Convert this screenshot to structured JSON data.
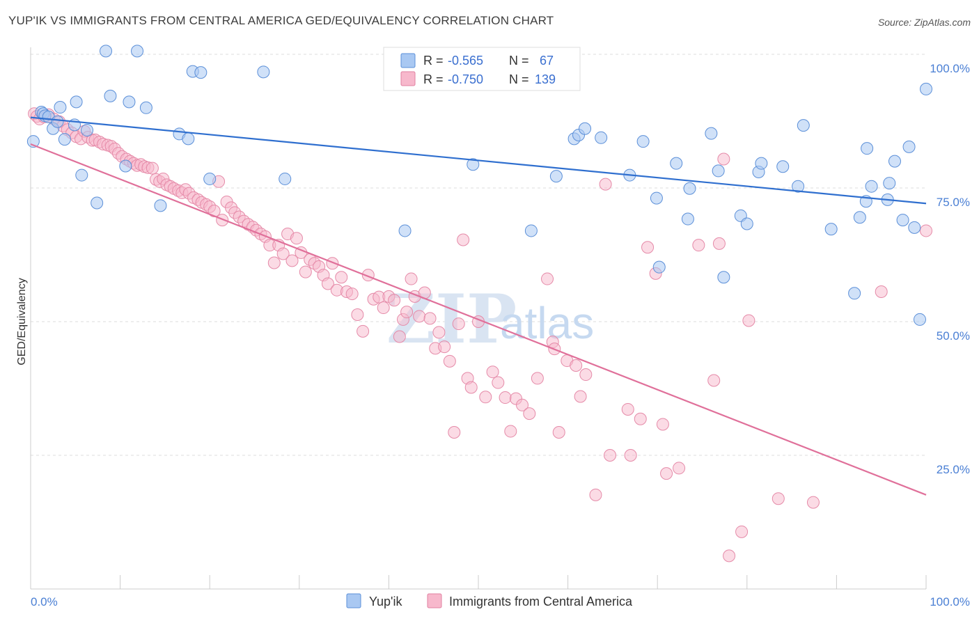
{
  "title": "YUP'IK VS IMMIGRANTS FROM CENTRAL AMERICA GED/EQUIVALENCY CORRELATION CHART",
  "source": "Source: ZipAtlas.com",
  "watermark": {
    "zip": "ZIP",
    "atlas": "atlas"
  },
  "legend_box": {
    "rows": [
      {
        "r_label": "R =",
        "r_value": "-0.565",
        "n_label": "N =",
        "n_value": "67",
        "color": "#a9c8f2",
        "stroke": "#5b8fd8"
      },
      {
        "r_label": "R =",
        "r_value": "-0.750",
        "n_label": "N =",
        "n_value": "139",
        "color": "#f7b8cc",
        "stroke": "#e07fa0"
      }
    ]
  },
  "colors": {
    "blue_fill": "#a9c8f2",
    "blue_stroke": "#5b8fd8",
    "blue_line": "#2f6fcf",
    "pink_fill": "#f7b8cc",
    "pink_stroke": "#e58aa8",
    "pink_line": "#e0709a",
    "tick": "#4a7fd4",
    "grid": "#dddddd"
  },
  "chart_data": {
    "type": "scatter",
    "title": "YUP'IK VS IMMIGRANTS FROM CENTRAL AMERICA GED/EQUIVALENCY CORRELATION CHART",
    "xlabel": "",
    "ylabel": "GED/Equivalency",
    "xlim": [
      0,
      100
    ],
    "ylim": [
      0,
      100
    ],
    "x_tick_labels": [
      "0.0%",
      "100.0%"
    ],
    "y_tick_labels": [
      "25.0%",
      "50.0%",
      "75.0%",
      "100.0%"
    ],
    "y_ticks": [
      25,
      50,
      75,
      100
    ],
    "grid": true,
    "legend_position": "bottom-center",
    "series": [
      {
        "name": "Yup'ik",
        "r": -0.565,
        "n": 67,
        "trend": {
          "x": [
            0,
            100
          ],
          "y": [
            88.2,
            72.1
          ]
        },
        "points": [
          [
            0.3,
            83.7
          ],
          [
            1.2,
            89.2
          ],
          [
            1.4,
            88.9
          ],
          [
            1.6,
            88.5
          ],
          [
            2.0,
            88.3
          ],
          [
            2.5,
            86.1
          ],
          [
            3.0,
            87.4
          ],
          [
            3.3,
            90.1
          ],
          [
            3.8,
            84.1
          ],
          [
            4.9,
            86.8
          ],
          [
            5.1,
            91.1
          ],
          [
            5.7,
            77.4
          ],
          [
            6.3,
            85.8
          ],
          [
            7.4,
            72.2
          ],
          [
            8.4,
            100.6
          ],
          [
            8.9,
            92.2
          ],
          [
            10.6,
            79.1
          ],
          [
            11.0,
            91.1
          ],
          [
            11.9,
            100.6
          ],
          [
            12.9,
            90.0
          ],
          [
            14.5,
            71.7
          ],
          [
            16.6,
            85.1
          ],
          [
            17.6,
            84.2
          ],
          [
            18.1,
            96.8
          ],
          [
            19.0,
            96.6
          ],
          [
            20.0,
            76.7
          ],
          [
            26.0,
            96.7
          ],
          [
            28.4,
            76.7
          ],
          [
            41.8,
            67.0
          ],
          [
            49.4,
            79.4
          ],
          [
            55.9,
            67.0
          ],
          [
            58.7,
            77.2
          ],
          [
            60.7,
            84.2
          ],
          [
            61.2,
            84.9
          ],
          [
            61.9,
            86.1
          ],
          [
            63.7,
            84.4
          ],
          [
            66.9,
            77.4
          ],
          [
            68.4,
            83.7
          ],
          [
            69.9,
            73.1
          ],
          [
            70.2,
            60.2
          ],
          [
            72.1,
            79.6
          ],
          [
            73.4,
            69.2
          ],
          [
            73.6,
            74.9
          ],
          [
            76.0,
            85.2
          ],
          [
            76.8,
            78.2
          ],
          [
            77.4,
            58.3
          ],
          [
            79.3,
            69.8
          ],
          [
            80.0,
            68.3
          ],
          [
            81.3,
            78.0
          ],
          [
            81.6,
            79.6
          ],
          [
            84.0,
            79.0
          ],
          [
            85.7,
            75.3
          ],
          [
            86.3,
            86.7
          ],
          [
            89.4,
            67.3
          ],
          [
            92.0,
            55.3
          ],
          [
            92.6,
            69.5
          ],
          [
            93.3,
            72.5
          ],
          [
            93.4,
            82.4
          ],
          [
            93.9,
            75.3
          ],
          [
            95.7,
            72.8
          ],
          [
            95.9,
            75.9
          ],
          [
            96.5,
            80.0
          ],
          [
            97.4,
            69.0
          ],
          [
            98.1,
            82.7
          ],
          [
            98.7,
            67.6
          ],
          [
            99.3,
            50.4
          ],
          [
            100.0,
            93.5
          ]
        ]
      },
      {
        "name": "Immigrants from Central America",
        "r": -0.75,
        "n": 139,
        "trend": {
          "x": [
            0,
            100
          ],
          "y": [
            83.2,
            17.6
          ]
        },
        "points": [
          [
            0.4,
            88.9
          ],
          [
            0.7,
            88.4
          ],
          [
            1.0,
            87.9
          ],
          [
            1.5,
            88.3
          ],
          [
            2.0,
            88.7
          ],
          [
            2.6,
            87.9
          ],
          [
            3.2,
            87.4
          ],
          [
            3.6,
            86.6
          ],
          [
            4.1,
            85.9
          ],
          [
            4.6,
            85.3
          ],
          [
            5.1,
            84.6
          ],
          [
            5.6,
            84.2
          ],
          [
            6.0,
            85.6
          ],
          [
            6.4,
            84.5
          ],
          [
            6.9,
            83.9
          ],
          [
            7.2,
            84.0
          ],
          [
            7.7,
            83.6
          ],
          [
            8.1,
            83.2
          ],
          [
            8.6,
            83.0
          ],
          [
            9.0,
            82.8
          ],
          [
            9.4,
            82.3
          ],
          [
            9.8,
            81.5
          ],
          [
            10.2,
            80.9
          ],
          [
            10.7,
            80.4
          ],
          [
            11.1,
            80.0
          ],
          [
            11.5,
            79.6
          ],
          [
            11.9,
            79.2
          ],
          [
            12.3,
            79.4
          ],
          [
            12.7,
            79.0
          ],
          [
            13.1,
            78.8
          ],
          [
            13.6,
            78.7
          ],
          [
            14.0,
            76.6
          ],
          [
            14.4,
            76.2
          ],
          [
            14.8,
            76.7
          ],
          [
            15.2,
            75.6
          ],
          [
            15.6,
            75.3
          ],
          [
            16.0,
            74.9
          ],
          [
            16.5,
            74.5
          ],
          [
            16.9,
            74.1
          ],
          [
            17.3,
            74.7
          ],
          [
            17.7,
            74.0
          ],
          [
            18.2,
            73.2
          ],
          [
            18.7,
            72.8
          ],
          [
            19.1,
            72.3
          ],
          [
            19.6,
            71.9
          ],
          [
            20.0,
            71.5
          ],
          [
            20.5,
            70.7
          ],
          [
            21.0,
            76.2
          ],
          [
            21.4,
            69.0
          ],
          [
            21.9,
            72.4
          ],
          [
            22.4,
            71.3
          ],
          [
            22.8,
            70.4
          ],
          [
            23.3,
            69.6
          ],
          [
            23.8,
            68.8
          ],
          [
            24.3,
            68.2
          ],
          [
            24.8,
            67.7
          ],
          [
            25.2,
            67.1
          ],
          [
            25.7,
            66.4
          ],
          [
            26.2,
            65.9
          ],
          [
            26.7,
            64.3
          ],
          [
            27.2,
            61.0
          ],
          [
            27.7,
            64.3
          ],
          [
            28.2,
            62.7
          ],
          [
            28.7,
            66.4
          ],
          [
            29.2,
            61.4
          ],
          [
            29.7,
            65.6
          ],
          [
            30.2,
            62.9
          ],
          [
            30.7,
            59.3
          ],
          [
            31.2,
            61.6
          ],
          [
            31.7,
            60.9
          ],
          [
            32.2,
            60.3
          ],
          [
            32.7,
            58.7
          ],
          [
            33.2,
            57.1
          ],
          [
            33.7,
            60.9
          ],
          [
            34.2,
            55.9
          ],
          [
            34.7,
            58.3
          ],
          [
            35.3,
            55.6
          ],
          [
            35.9,
            55.2
          ],
          [
            36.5,
            51.3
          ],
          [
            37.1,
            48.2
          ],
          [
            37.7,
            58.7
          ],
          [
            38.3,
            54.2
          ],
          [
            38.9,
            54.6
          ],
          [
            39.4,
            52.6
          ],
          [
            40.0,
            54.7
          ],
          [
            40.6,
            54.0
          ],
          [
            41.2,
            47.2
          ],
          [
            41.6,
            50.4
          ],
          [
            42.0,
            51.8
          ],
          [
            42.5,
            58.0
          ],
          [
            42.9,
            54.7
          ],
          [
            43.4,
            51.0
          ],
          [
            44.0,
            55.4
          ],
          [
            44.6,
            50.6
          ],
          [
            45.2,
            45.0
          ],
          [
            45.6,
            48.0
          ],
          [
            46.2,
            45.3
          ],
          [
            46.8,
            42.6
          ],
          [
            47.3,
            29.3
          ],
          [
            47.8,
            49.6
          ],
          [
            48.3,
            65.3
          ],
          [
            48.8,
            39.4
          ],
          [
            49.2,
            37.7
          ],
          [
            50.0,
            50.0
          ],
          [
            50.8,
            35.9
          ],
          [
            51.6,
            40.6
          ],
          [
            52.2,
            38.6
          ],
          [
            53.0,
            35.8
          ],
          [
            53.6,
            29.5
          ],
          [
            54.2,
            35.6
          ],
          [
            54.9,
            34.4
          ],
          [
            55.7,
            32.8
          ],
          [
            56.6,
            39.4
          ],
          [
            57.7,
            58.0
          ],
          [
            58.3,
            46.2
          ],
          [
            58.5,
            44.9
          ],
          [
            59.0,
            29.3
          ],
          [
            59.9,
            42.7
          ],
          [
            60.9,
            41.8
          ],
          [
            61.4,
            36.0
          ],
          [
            62.0,
            40.1
          ],
          [
            63.1,
            17.6
          ],
          [
            64.2,
            75.7
          ],
          [
            64.7,
            25.0
          ],
          [
            66.7,
            33.6
          ],
          [
            67.0,
            25.0
          ],
          [
            68.1,
            31.8
          ],
          [
            68.9,
            63.9
          ],
          [
            69.8,
            59.0
          ],
          [
            70.6,
            30.8
          ],
          [
            71.0,
            21.6
          ],
          [
            72.4,
            22.6
          ],
          [
            74.6,
            64.3
          ],
          [
            76.3,
            39.0
          ],
          [
            76.9,
            64.6
          ],
          [
            77.4,
            80.4
          ],
          [
            78.0,
            6.2
          ],
          [
            79.4,
            10.7
          ],
          [
            80.2,
            50.2
          ],
          [
            83.5,
            16.9
          ],
          [
            87.4,
            16.2
          ],
          [
            95.0,
            55.6
          ],
          [
            100.0,
            67.0
          ]
        ]
      }
    ]
  }
}
